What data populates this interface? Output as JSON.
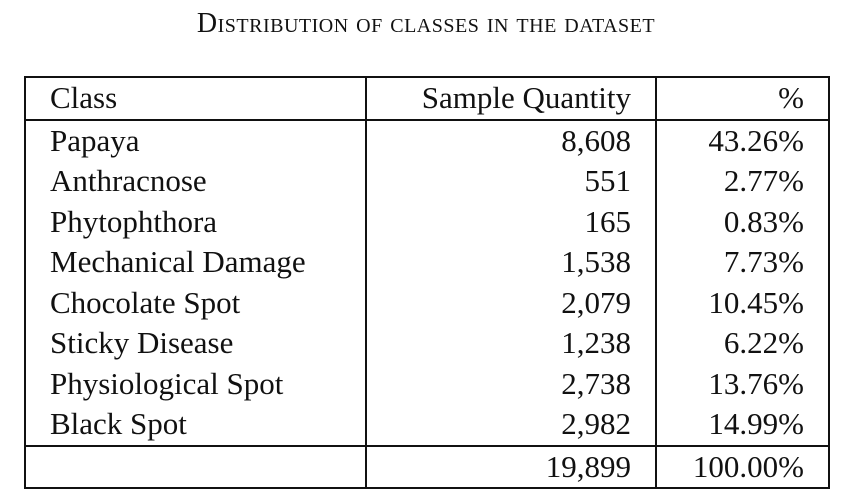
{
  "caption": "Distribution of classes in the dataset",
  "table": {
    "headers": [
      "Class",
      "Sample Quantity",
      "%"
    ],
    "rows": [
      {
        "class": "Papaya",
        "quantity": "8,608",
        "percent": "43.26%"
      },
      {
        "class": "Anthracnose",
        "quantity": "551",
        "percent": "2.77%"
      },
      {
        "class": "Phytophthora",
        "quantity": "165",
        "percent": "0.83%"
      },
      {
        "class": "Mechanical Damage",
        "quantity": "1,538",
        "percent": "7.73%"
      },
      {
        "class": "Chocolate Spot",
        "quantity": "2,079",
        "percent": "10.45%"
      },
      {
        "class": "Sticky Disease",
        "quantity": "1,238",
        "percent": "6.22%"
      },
      {
        "class": "Physiological Spot",
        "quantity": "2,738",
        "percent": "13.76%"
      },
      {
        "class": "Black Spot",
        "quantity": "2,982",
        "percent": "14.99%"
      }
    ],
    "total": {
      "class": "",
      "quantity": "19,899",
      "percent": "100.00%"
    }
  }
}
